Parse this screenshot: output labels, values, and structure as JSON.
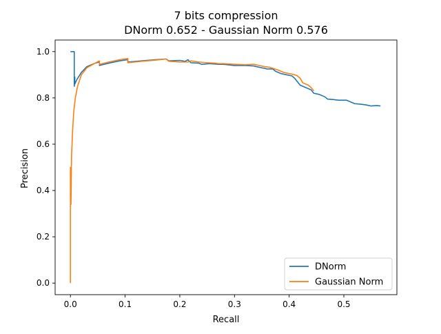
{
  "chart_data": {
    "type": "line",
    "title_line1": "7 bits compression",
    "title_line2": "DNorm 0.652 - Gaussian Norm 0.576",
    "xlabel": "Recall",
    "ylabel": "Precision",
    "xlim": [
      -0.028,
      0.597
    ],
    "ylim": [
      -0.05,
      1.05
    ],
    "xticks": [
      0.0,
      0.1,
      0.2,
      0.3,
      0.4,
      0.5
    ],
    "xtick_labels": [
      "0.0",
      "0.1",
      "0.2",
      "0.3",
      "0.4",
      "0.5"
    ],
    "yticks": [
      0.0,
      0.2,
      0.4,
      0.6,
      0.8,
      1.0
    ],
    "ytick_labels": [
      "0.0",
      "0.2",
      "0.4",
      "0.6",
      "0.8",
      "1.0"
    ],
    "grid": false,
    "legend_position": "lower-right",
    "series": [
      {
        "name": "DNorm",
        "color": "#1f77b4",
        "points": [
          [
            0.0,
            1.0
          ],
          [
            0.007,
            1.0
          ],
          [
            0.007,
            0.85
          ],
          [
            0.008,
            0.89
          ],
          [
            0.008,
            0.86
          ],
          [
            0.012,
            0.88
          ],
          [
            0.02,
            0.91
          ],
          [
            0.03,
            0.935
          ],
          [
            0.045,
            0.95
          ],
          [
            0.053,
            0.955
          ],
          [
            0.053,
            0.94
          ],
          [
            0.07,
            0.95
          ],
          [
            0.09,
            0.96
          ],
          [
            0.105,
            0.965
          ],
          [
            0.105,
            0.955
          ],
          [
            0.13,
            0.96
          ],
          [
            0.155,
            0.965
          ],
          [
            0.175,
            0.968
          ],
          [
            0.18,
            0.96
          ],
          [
            0.2,
            0.962
          ],
          [
            0.21,
            0.958
          ],
          [
            0.215,
            0.965
          ],
          [
            0.22,
            0.952
          ],
          [
            0.235,
            0.95
          ],
          [
            0.24,
            0.945
          ],
          [
            0.255,
            0.948
          ],
          [
            0.27,
            0.945
          ],
          [
            0.28,
            0.945
          ],
          [
            0.3,
            0.94
          ],
          [
            0.32,
            0.94
          ],
          [
            0.335,
            0.938
          ],
          [
            0.34,
            0.935
          ],
          [
            0.35,
            0.93
          ],
          [
            0.36,
            0.925
          ],
          [
            0.37,
            0.925
          ],
          [
            0.375,
            0.915
          ],
          [
            0.385,
            0.905
          ],
          [
            0.395,
            0.9
          ],
          [
            0.405,
            0.895
          ],
          [
            0.41,
            0.885
          ],
          [
            0.415,
            0.87
          ],
          [
            0.42,
            0.855
          ],
          [
            0.43,
            0.845
          ],
          [
            0.44,
            0.835
          ],
          [
            0.445,
            0.82
          ],
          [
            0.455,
            0.815
          ],
          [
            0.465,
            0.805
          ],
          [
            0.47,
            0.795
          ],
          [
            0.48,
            0.793
          ],
          [
            0.49,
            0.79
          ],
          [
            0.505,
            0.79
          ],
          [
            0.51,
            0.785
          ],
          [
            0.52,
            0.775
          ],
          [
            0.53,
            0.773
          ],
          [
            0.54,
            0.77
          ],
          [
            0.55,
            0.765
          ],
          [
            0.56,
            0.767
          ],
          [
            0.567,
            0.765
          ]
        ]
      },
      {
        "name": "Gaussian Norm",
        "color": "#ff7f0e",
        "points": [
          [
            0.0,
            0.0
          ],
          [
            0.0,
            0.5
          ],
          [
            0.001,
            0.42
          ],
          [
            0.001,
            0.34
          ],
          [
            0.002,
            0.55
          ],
          [
            0.004,
            0.66
          ],
          [
            0.006,
            0.74
          ],
          [
            0.009,
            0.8
          ],
          [
            0.013,
            0.85
          ],
          [
            0.02,
            0.9
          ],
          [
            0.03,
            0.93
          ],
          [
            0.045,
            0.95
          ],
          [
            0.053,
            0.96
          ],
          [
            0.053,
            0.945
          ],
          [
            0.07,
            0.955
          ],
          [
            0.09,
            0.965
          ],
          [
            0.105,
            0.97
          ],
          [
            0.105,
            0.952
          ],
          [
            0.13,
            0.958
          ],
          [
            0.155,
            0.963
          ],
          [
            0.175,
            0.968
          ],
          [
            0.18,
            0.958
          ],
          [
            0.2,
            0.955
          ],
          [
            0.215,
            0.955
          ],
          [
            0.22,
            0.96
          ],
          [
            0.235,
            0.955
          ],
          [
            0.25,
            0.952
          ],
          [
            0.265,
            0.95
          ],
          [
            0.27,
            0.948
          ],
          [
            0.28,
            0.948
          ],
          [
            0.3,
            0.945
          ],
          [
            0.32,
            0.943
          ],
          [
            0.335,
            0.945
          ],
          [
            0.345,
            0.94
          ],
          [
            0.355,
            0.935
          ],
          [
            0.365,
            0.932
          ],
          [
            0.38,
            0.92
          ],
          [
            0.39,
            0.91
          ],
          [
            0.4,
            0.905
          ],
          [
            0.41,
            0.9
          ],
          [
            0.415,
            0.895
          ],
          [
            0.42,
            0.885
          ],
          [
            0.425,
            0.865
          ],
          [
            0.435,
            0.855
          ],
          [
            0.44,
            0.845
          ],
          [
            0.445,
            0.83
          ]
        ]
      }
    ]
  }
}
